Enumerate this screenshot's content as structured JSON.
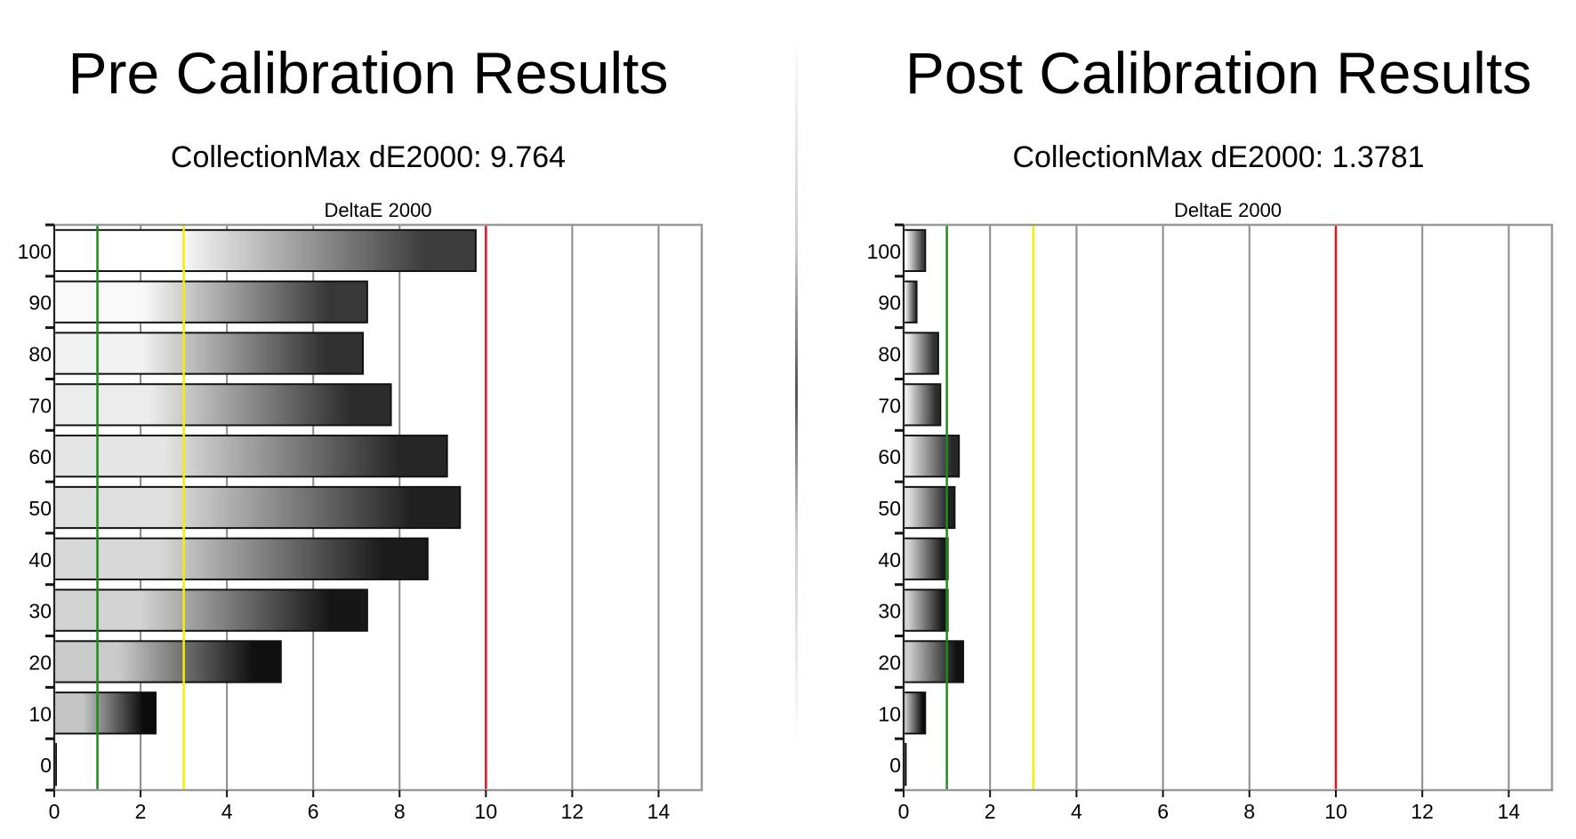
{
  "chart_data": [
    {
      "type": "bar",
      "orientation": "horizontal",
      "title": "Pre Calibration Results",
      "subtitle": "CollectionMax dE2000: 9.764",
      "plot_title": "DeltaE 2000",
      "categories": [
        "0",
        "10",
        "20",
        "30",
        "40",
        "50",
        "60",
        "70",
        "80",
        "90",
        "100"
      ],
      "values": [
        0,
        2.35,
        5.25,
        7.25,
        8.65,
        9.4,
        9.1,
        7.8,
        7.15,
        7.25,
        9.764
      ],
      "xlim": [
        0,
        15
      ],
      "xticks": [
        "0",
        "2",
        "4",
        "6",
        "8",
        "10",
        "12",
        "14"
      ],
      "grid": true,
      "reference_lines": [
        {
          "value": 1,
          "color": "#1e8a1e"
        },
        {
          "value": 3,
          "color": "#f5f000"
        },
        {
          "value": 10,
          "color": "#e8141e"
        }
      ]
    },
    {
      "type": "bar",
      "orientation": "horizontal",
      "title": "Post Calibration Results",
      "subtitle": "CollectionMax dE2000: 1.3781",
      "plot_title": "DeltaE 2000",
      "categories": [
        "0",
        "10",
        "20",
        "30",
        "40",
        "50",
        "60",
        "70",
        "80",
        "90",
        "100"
      ],
      "values": [
        0.05,
        0.5,
        1.3781,
        1.02,
        1.02,
        1.18,
        1.28,
        0.85,
        0.8,
        0.3,
        0.5
      ],
      "xlim": [
        0,
        15
      ],
      "xticks": [
        "0",
        "2",
        "4",
        "6",
        "8",
        "10",
        "12",
        "14"
      ],
      "grid": true,
      "reference_lines": [
        {
          "value": 1,
          "color": "#1e8a1e"
        },
        {
          "value": 3,
          "color": "#f5f000"
        },
        {
          "value": 10,
          "color": "#e8141e"
        }
      ]
    }
  ]
}
